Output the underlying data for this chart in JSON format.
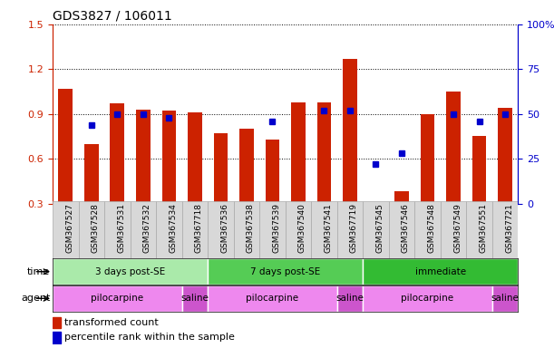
{
  "title": "GDS3827 / 106011",
  "samples": [
    "GSM367527",
    "GSM367528",
    "GSM367531",
    "GSM367532",
    "GSM367534",
    "GSM367718",
    "GSM367536",
    "GSM367538",
    "GSM367539",
    "GSM367540",
    "GSM367541",
    "GSM367719",
    "GSM367545",
    "GSM367546",
    "GSM367548",
    "GSM367549",
    "GSM367551",
    "GSM367721"
  ],
  "red_values": [
    1.07,
    0.7,
    0.97,
    0.93,
    0.92,
    0.91,
    0.77,
    0.8,
    0.73,
    0.98,
    0.98,
    1.27,
    0.28,
    0.38,
    0.9,
    1.05,
    0.75,
    0.94
  ],
  "blue_pct": [
    null,
    44,
    50,
    50,
    48,
    null,
    null,
    null,
    46,
    null,
    52,
    52,
    22,
    28,
    null,
    50,
    46,
    50
  ],
  "ylim_left": [
    0.3,
    1.5
  ],
  "ylim_right": [
    0,
    100
  ],
  "yticks_left": [
    0.3,
    0.6,
    0.9,
    1.2,
    1.5
  ],
  "yticks_right": [
    0,
    25,
    50,
    75,
    100
  ],
  "time_groups": [
    {
      "label": "3 days post-SE",
      "start": 0,
      "end": 6,
      "color": "#aaeaaa"
    },
    {
      "label": "7 days post-SE",
      "start": 6,
      "end": 12,
      "color": "#55cc55"
    },
    {
      "label": "immediate",
      "start": 12,
      "end": 18,
      "color": "#33bb33"
    }
  ],
  "agent_groups": [
    {
      "label": "pilocarpine",
      "start": 0,
      "end": 5,
      "color": "#ee88ee"
    },
    {
      "label": "saline",
      "start": 5,
      "end": 6,
      "color": "#cc55cc"
    },
    {
      "label": "pilocarpine",
      "start": 6,
      "end": 11,
      "color": "#ee88ee"
    },
    {
      "label": "saline",
      "start": 11,
      "end": 12,
      "color": "#cc55cc"
    },
    {
      "label": "pilocarpine",
      "start": 12,
      "end": 17,
      "color": "#ee88ee"
    },
    {
      "label": "saline",
      "start": 17,
      "end": 18,
      "color": "#cc55cc"
    }
  ],
  "bar_color": "#cc2200",
  "dot_color": "#0000cc",
  "bar_width": 0.55,
  "legend_items": [
    {
      "label": "transformed count",
      "color": "#cc2200"
    },
    {
      "label": "percentile rank within the sample",
      "color": "#0000cc"
    }
  ],
  "left_axis_color": "#cc2200",
  "right_axis_color": "#0000cc",
  "xtick_bg_color": "#d8d8d8",
  "xtick_border_color": "#aaaaaa"
}
